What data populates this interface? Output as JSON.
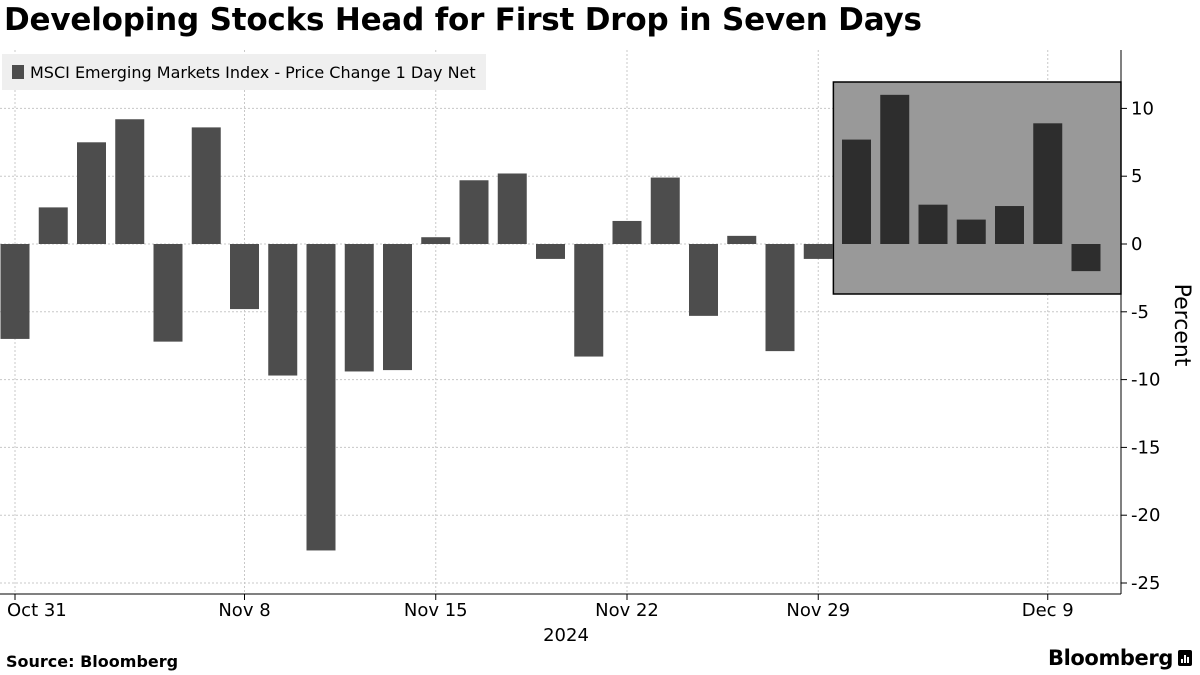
{
  "title": "Developing Stocks Head for First Drop in Seven Days",
  "legend": {
    "label": "MSCI Emerging Markets Index - Price Change 1 Day Net",
    "color": "#4d4d4d"
  },
  "footer": {
    "source": "Source: Bloomberg",
    "brand": "Bloomberg",
    "brand_icon": "bloomberg-terminal-icon"
  },
  "colors": {
    "bar": "#4d4d4d",
    "bar_highlight": "#2d2d2d",
    "highlight_box": "#999999",
    "grid": "#c8c8c8"
  },
  "chart_data": {
    "type": "bar",
    "title": "Developing Stocks Head for First Drop in Seven Days",
    "ylabel": "Percent",
    "xlabel": "2024",
    "ylim": [
      -25,
      14
    ],
    "yticks": [
      10,
      5,
      0,
      -5,
      -10,
      -15,
      -20,
      -25
    ],
    "grid": true,
    "legend_placement": "top-left",
    "x_tick_labels": [
      {
        "label": "Oct 31",
        "date": "2024-10-31"
      },
      {
        "label": "Nov 8",
        "date": "2024-11-08"
      },
      {
        "label": "Nov 15",
        "date": "2024-11-15"
      },
      {
        "label": "Nov 22",
        "date": "2024-11-22"
      },
      {
        "label": "Nov 29",
        "date": "2024-11-29"
      },
      {
        "label": "Dec 9",
        "date": "2024-12-09"
      }
    ],
    "categories": [
      "2024-10-31",
      "2024-11-01",
      "2024-11-04",
      "2024-11-05",
      "2024-11-06",
      "2024-11-07",
      "2024-11-08",
      "2024-11-11",
      "2024-11-12",
      "2024-11-13",
      "2024-11-14",
      "2024-11-15",
      "2024-11-18",
      "2024-11-19",
      "2024-11-20",
      "2024-11-21",
      "2024-11-22",
      "2024-11-25",
      "2024-11-26",
      "2024-11-27",
      "2024-11-28",
      "2024-11-29",
      "2024-12-02",
      "2024-12-03",
      "2024-12-04",
      "2024-12-05",
      "2024-12-06",
      "2024-12-09",
      "2024-12-10"
    ],
    "series": [
      {
        "name": "MSCI Emerging Markets Index - Price Change 1 Day Net",
        "values": [
          -7.0,
          2.7,
          7.5,
          9.2,
          -7.2,
          8.6,
          -4.8,
          -9.7,
          -22.6,
          -9.4,
          -9.3,
          0.5,
          4.7,
          5.2,
          -1.1,
          -8.3,
          1.7,
          4.9,
          -5.3,
          0.6,
          -7.9,
          -1.1,
          7.7,
          11.0,
          2.9,
          1.8,
          2.8,
          8.9,
          -2.0
        ]
      }
    ],
    "highlight_range": {
      "from": "2024-12-02",
      "to": "2024-12-10"
    }
  }
}
